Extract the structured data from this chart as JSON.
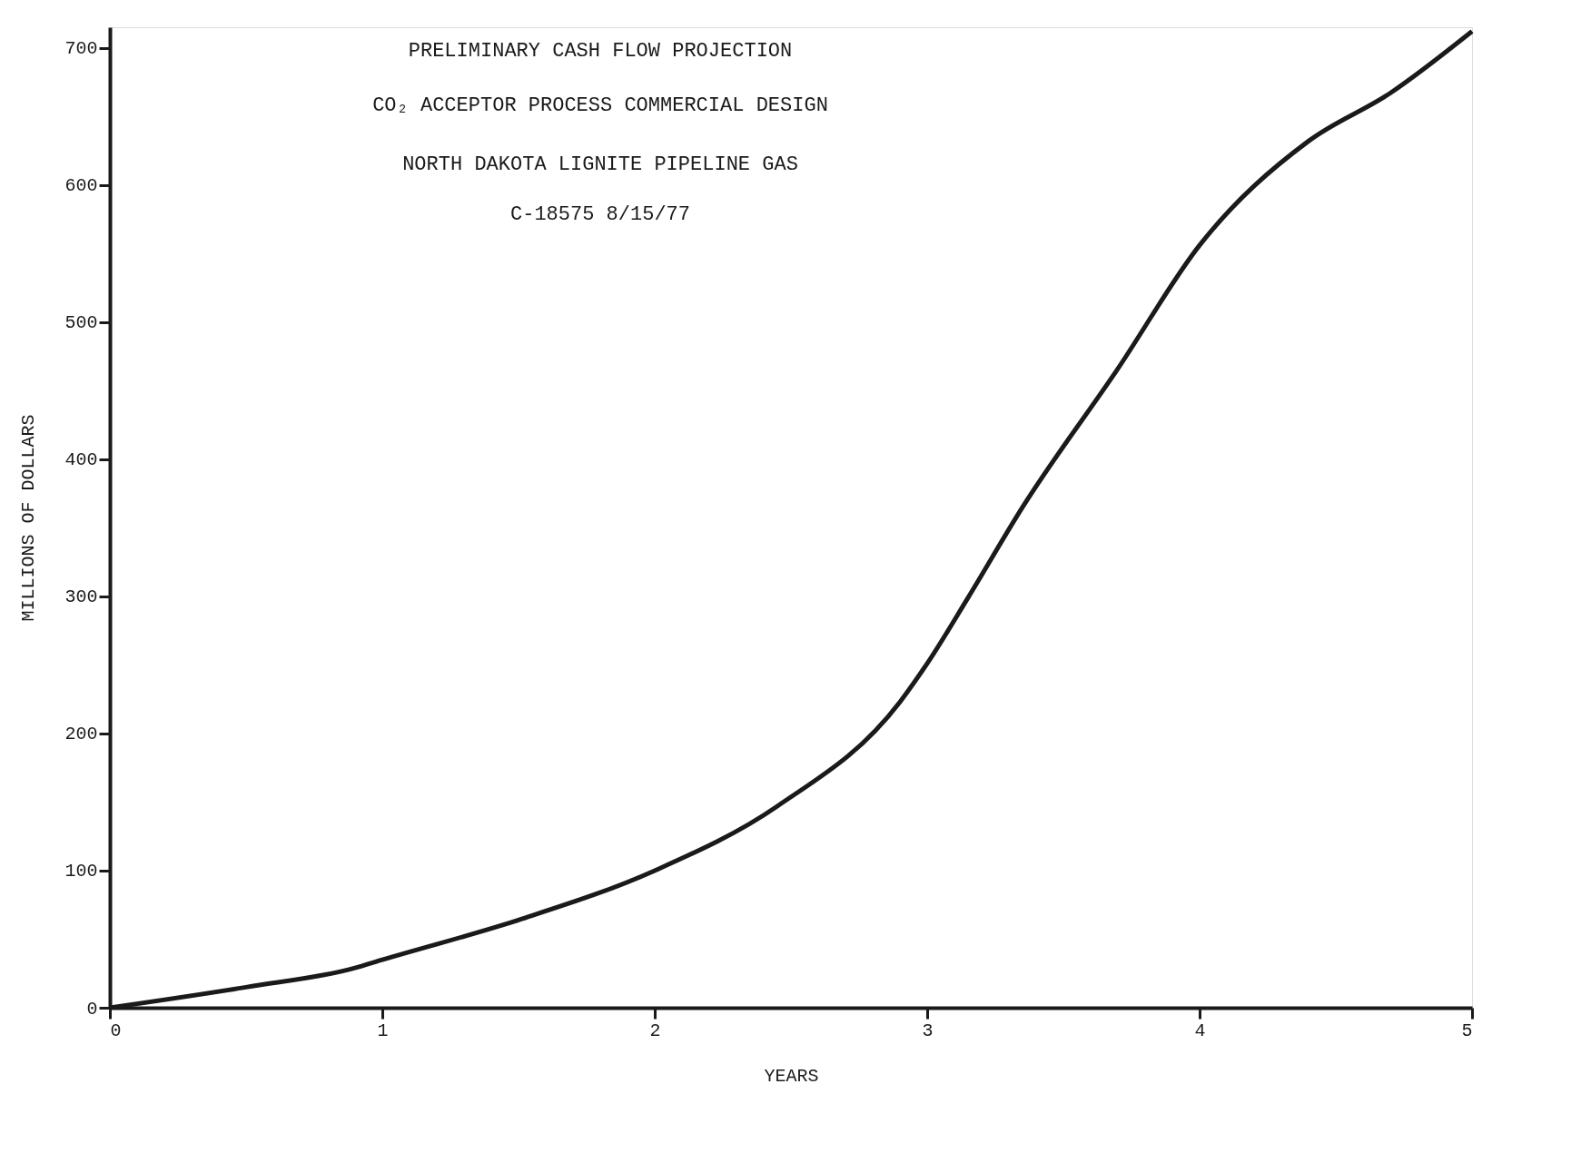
{
  "chart_data": {
    "type": "line",
    "title": "PRELIMINARY CASH FLOW PROJECTION",
    "subtitle": "CO₂ ACCEPTOR PROCESS COMMERCIAL DESIGN",
    "annotations": [
      "NORTH DAKOTA LIGNITE PIPELINE GAS",
      "C-18575   8/15/77"
    ],
    "xlabel": "YEARS",
    "ylabel": "MILLIONS OF DOLLARS",
    "x": [
      0,
      0.5,
      0.9,
      1,
      1.5,
      2,
      2.45,
      2.9,
      3,
      3.15,
      3.35,
      3.7,
      4,
      4.4,
      4.7,
      5
    ],
    "series": [
      {
        "color": "#1a1a1a",
        "values": [
          0,
          15,
          29,
          35,
          64,
          100,
          147,
          223,
          251,
          299,
          365,
          466,
          556,
          632,
          667,
          712
        ]
      }
    ],
    "xlim": [
      0,
      5
    ],
    "xticks": [
      0,
      1,
      2,
      3,
      4,
      5
    ],
    "ylim": [
      0,
      715
    ],
    "yticks": [
      0,
      100,
      200,
      300,
      400,
      500,
      600,
      700
    ],
    "grid": false,
    "legend": false,
    "marker": "none",
    "line_style": "solid"
  }
}
